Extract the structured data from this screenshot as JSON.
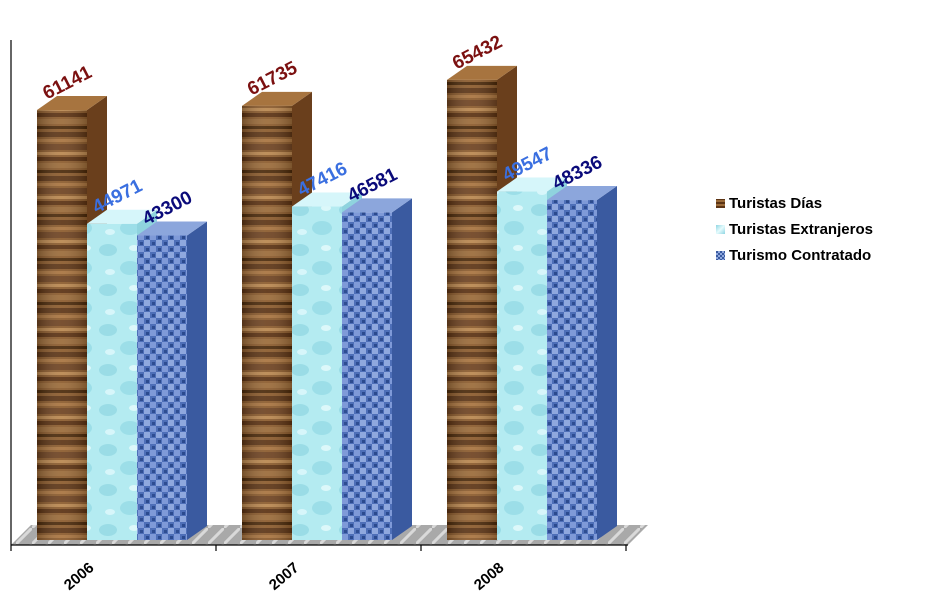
{
  "chart_data": {
    "type": "bar",
    "title": "",
    "xlabel": "",
    "ylabel": "",
    "categories": [
      "2006",
      "2007",
      "2008"
    ],
    "ylim": [
      0,
      70000
    ],
    "grid": false,
    "legend": "right",
    "series": [
      {
        "name": "Turistas Días",
        "values": [
          61141,
          61735,
          65432
        ],
        "color": "#8a5a2e",
        "label_color": "#7b1010"
      },
      {
        "name": "Turistas Extranjeros",
        "values": [
          44971,
          47416,
          49547
        ],
        "color": "#b6ecf2",
        "label_color": "#3a6fe0"
      },
      {
        "name": "Turismo Contratado",
        "values": [
          43300,
          46581,
          48336
        ],
        "color": "#4a6cb4",
        "label_color": "#0a0a7a"
      }
    ]
  }
}
